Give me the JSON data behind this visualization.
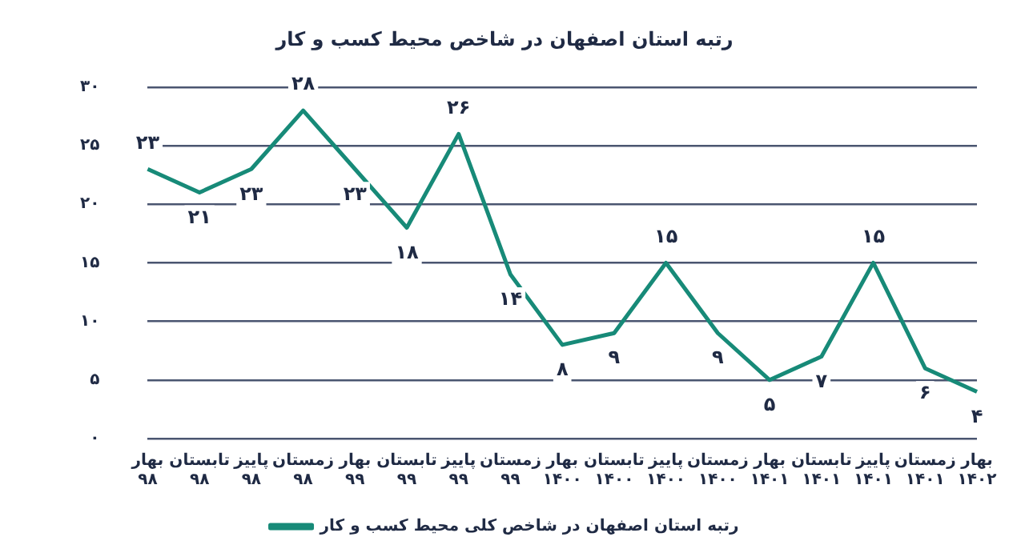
{
  "chart_data": {
    "type": "line",
    "title": "رتبه استان اصفهان در شاخص محیط کسب و کار",
    "categories": [
      "بهار ۹۸",
      "تابستان ۹۸",
      "پاییز ۹۸",
      "زمستان ۹۸",
      "بهار ۹۹",
      "تابستان ۹۹",
      "پاییز ۹۹",
      "زمستان ۹۹",
      "بهار ۱۴۰۰",
      "تابستان ۱۴۰۰",
      "پاییز ۱۴۰۰",
      "زمستان ۱۴۰۰",
      "بهار ۱۴۰۱",
      "تابستان ۱۴۰۱",
      "پاییز ۱۴۰۱",
      "زمستان ۱۴۰۱",
      "بهار ۱۴۰۲"
    ],
    "series": [
      {
        "name": "رتبه استان اصفهان در شاخص کلی محیط کسب و کار",
        "color": "#178a78",
        "values": [
          23,
          21,
          23,
          28,
          23,
          18,
          26,
          14,
          8,
          9,
          15,
          9,
          5,
          7,
          15,
          6,
          4
        ],
        "value_labels": [
          "۲۳",
          "۲۱",
          "۲۳",
          "۲۸",
          "۲۳",
          "۱۸",
          "۲۶",
          "۱۴",
          "۸",
          "۹",
          "۱۵",
          "۹",
          "۵",
          "۷",
          "۱۵",
          "۶",
          "۴"
        ]
      }
    ],
    "ylim": [
      0,
      30
    ],
    "yticks": [
      {
        "value": 0,
        "label": "۰"
      },
      {
        "value": 5,
        "label": "۵"
      },
      {
        "value": 10,
        "label": "۱۰"
      },
      {
        "value": 15,
        "label": "۱۵"
      },
      {
        "value": 20,
        "label": "۲۰"
      },
      {
        "value": 25,
        "label": "۲۵"
      },
      {
        "value": 30,
        "label": "۳۰"
      }
    ],
    "grid": "y",
    "legend": "bottom",
    "marker": "none",
    "line_style": "solid"
  }
}
